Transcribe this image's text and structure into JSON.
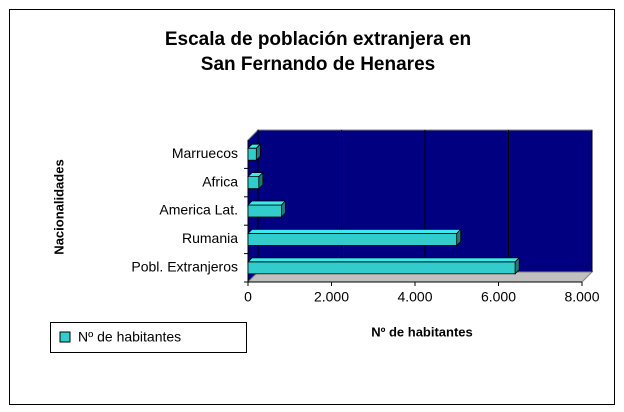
{
  "chart_data": {
    "type": "bar3d",
    "orientation": "horizontal",
    "title": [
      "Escala de población extranjera en",
      "San Fernando de Henares"
    ],
    "ylabel": "Nacionalidades",
    "xlabel": "Nº de habitantes",
    "categories": [
      "Pobl. Extranjeros",
      "Rumania",
      "America Lat.",
      "Africa",
      "Marruecos"
    ],
    "series": [
      {
        "name": "Nº de habitantes",
        "color": "#33cccc",
        "values": [
          6400,
          5000,
          800,
          260,
          200
        ]
      }
    ],
    "xlim": [
      0,
      8000
    ],
    "xticks": [
      0,
      {
        "value": 2000,
        "label": "2.000"
      },
      {
        "value": 4000,
        "label": "4.000"
      },
      {
        "value": 6000,
        "label": "6.000"
      },
      {
        "value": 8000,
        "label": "8.000"
      }
    ],
    "grid": true,
    "legend": "bottom-left",
    "wall_color": "#000080",
    "floor_color": "#c0c0c0"
  }
}
